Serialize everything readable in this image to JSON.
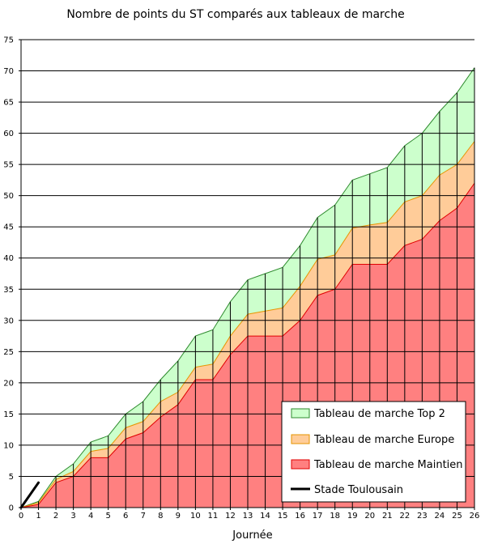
{
  "chart_data": {
    "type": "area",
    "title": "Nombre de points du ST comparés aux tableaux de marche",
    "xlabel": "Journée",
    "ylabel": "",
    "xlim": [
      0,
      26
    ],
    "ylim": [
      0,
      75
    ],
    "x": [
      0,
      1,
      2,
      3,
      4,
      5,
      6,
      7,
      8,
      9,
      10,
      11,
      12,
      13,
      14,
      15,
      16,
      17,
      18,
      19,
      20,
      21,
      22,
      23,
      24,
      25,
      26
    ],
    "x_ticks": [
      "0",
      "1",
      "2",
      "3",
      "4",
      "5",
      "6",
      "7",
      "8",
      "9",
      "10",
      "11",
      "12",
      "13",
      "14",
      "15",
      "16",
      "17",
      "18",
      "19",
      "20",
      "21",
      "22",
      "23",
      "24",
      "25",
      "26"
    ],
    "y_ticks": [
      "0",
      "5",
      "10",
      "15",
      "20",
      "25",
      "30",
      "35",
      "40",
      "45",
      "50",
      "55",
      "60",
      "65",
      "70",
      "75"
    ],
    "grid": "horizontal lines every 5; vertical lines at each journée",
    "legend_position": "bottom-right",
    "series": [
      {
        "name": "Tableau de marche Top 2",
        "type": "area",
        "color": "#ccffcc",
        "edge_color": "#2e8b2e",
        "values": [
          0,
          1,
          5,
          7,
          10.5,
          11.5,
          15,
          17,
          20.5,
          23.5,
          27.5,
          28.5,
          33,
          36.5,
          37.5,
          38.5,
          42,
          46.5,
          48.5,
          52.5,
          53.5,
          54.5,
          58,
          60,
          63.5,
          66.5,
          70.5
        ]
      },
      {
        "name": "Tableau de marche Europe",
        "type": "area",
        "color": "#ffcc99",
        "edge_color": "#e69500",
        "values": [
          0,
          0.8,
          4.5,
          5.8,
          9,
          9.5,
          12.8,
          13.8,
          17,
          18.5,
          22.5,
          23,
          27.5,
          31,
          31.5,
          32,
          35.5,
          39.8,
          40.5,
          44.8,
          45.3,
          45.7,
          49,
          50,
          53.3,
          55,
          58.7
        ]
      },
      {
        "name": "Tableau de marche Maintien",
        "type": "area",
        "color": "#ff8080",
        "edge_color": "#e00000",
        "values": [
          0,
          0.5,
          4,
          5,
          8,
          8,
          11,
          12,
          14.5,
          16.5,
          20.5,
          20.5,
          24.5,
          27.5,
          27.5,
          27.5,
          30,
          34,
          35,
          39,
          39,
          39,
          42,
          43,
          46,
          48,
          52
        ]
      },
      {
        "name": "Stade Toulousain",
        "type": "line",
        "color": "#000000",
        "x": [
          0,
          1
        ],
        "values": [
          0,
          4
        ]
      }
    ]
  }
}
